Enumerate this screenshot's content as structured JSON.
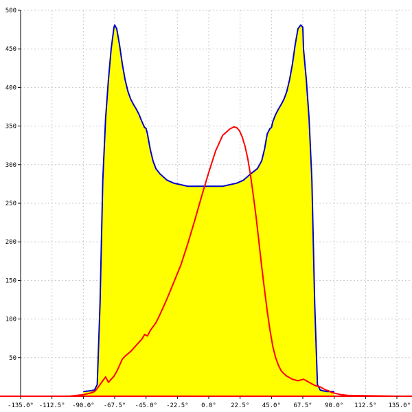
{
  "chart_data": {
    "type": "area",
    "xlim": [
      -135,
      135
    ],
    "ylim": [
      0,
      500
    ],
    "x_ticks": [
      -135,
      -112.5,
      -90,
      -67.5,
      -45,
      -22.5,
      0,
      22.5,
      45,
      67.5,
      90,
      112.5,
      135
    ],
    "x_tick_labels": [
      "-135.0°",
      "-112.5°",
      "-90.0°",
      "-67.5°",
      "-45.0°",
      "-22.5°",
      "0.0°",
      "22.5°",
      "45.0°",
      "67.5°",
      "90.0°",
      "112.5°",
      "135.0°"
    ],
    "y_ticks": [
      50,
      100,
      150,
      200,
      250,
      300,
      350,
      400,
      450,
      500
    ],
    "y_tick_labels": [
      "50",
      "100",
      "150",
      "200",
      "250",
      "300",
      "350",
      "400",
      "450",
      "500"
    ],
    "grid": true,
    "series": [
      {
        "color": "#0000cc",
        "fill": "#ffff00",
        "x": [
          -90,
          -85,
          -82,
          -80,
          -78,
          -76,
          -74,
          -72,
          -70,
          -68,
          -67.5,
          -66,
          -64,
          -62,
          -60,
          -58,
          -56,
          -54,
          -52,
          -50,
          -48,
          -46,
          -45,
          -44,
          -42,
          -40,
          -38,
          -35,
          -30,
          -25,
          -20,
          -15,
          -10,
          -5,
          0,
          5,
          10,
          15,
          20,
          25,
          30,
          35,
          38,
          40,
          42,
          44,
          45,
          46,
          48,
          50,
          52,
          54,
          56,
          58,
          60,
          62,
          64,
          66,
          67.5,
          68,
          70,
          72,
          74,
          76,
          78,
          80,
          82,
          85,
          90
        ],
        "y": [
          6,
          7,
          8,
          15,
          120,
          280,
          360,
          410,
          450,
          478,
          481,
          476,
          455,
          430,
          410,
          395,
          385,
          378,
          372,
          365,
          356,
          348,
          347,
          340,
          320,
          305,
          295,
          288,
          280,
          276,
          274,
          272,
          272,
          272,
          272,
          272,
          272,
          274,
          276,
          280,
          288,
          295,
          305,
          320,
          340,
          347,
          348,
          356,
          365,
          372,
          378,
          385,
          395,
          410,
          430,
          455,
          476,
          481,
          478,
          450,
          410,
          360,
          280,
          120,
          15,
          8,
          7,
          6,
          6
        ]
      },
      {
        "color": "#ff0000",
        "x": [
          -135,
          -100,
          -90,
          -85,
          -82,
          -80,
          -78,
          -76,
          -74,
          -72,
          -70,
          -68,
          -66,
          -64,
          -62,
          -60,
          -58,
          -56,
          -54,
          -52,
          -50,
          -48,
          -46,
          -44,
          -42,
          -40,
          -38,
          -36,
          -34,
          -32,
          -30,
          -25,
          -20,
          -15,
          -10,
          -5,
          0,
          5,
          10,
          15,
          18,
          20,
          22,
          24,
          26,
          28,
          30,
          32,
          34,
          36,
          38,
          40,
          42,
          44,
          46,
          48,
          50,
          52,
          54,
          56,
          58,
          60,
          62,
          64,
          66,
          68,
          70,
          72,
          74,
          76,
          78,
          80,
          82,
          84,
          86,
          88,
          90,
          95,
          100,
          135
        ],
        "y": [
          0,
          0,
          2,
          4,
          6,
          10,
          15,
          20,
          25,
          18,
          22,
          26,
          32,
          40,
          48,
          52,
          55,
          58,
          62,
          66,
          70,
          74,
          80,
          78,
          85,
          90,
          95,
          102,
          110,
          118,
          126,
          148,
          170,
          198,
          228,
          260,
          290,
          318,
          338,
          346,
          349,
          348,
          344,
          336,
          324,
          308,
          286,
          260,
          232,
          200,
          168,
          138,
          110,
          85,
          64,
          50,
          40,
          33,
          29,
          26,
          24,
          22,
          21,
          20,
          21,
          22,
          20,
          18,
          16,
          14,
          13,
          12,
          10,
          8,
          7,
          5,
          4,
          2,
          1,
          0
        ]
      }
    ]
  }
}
